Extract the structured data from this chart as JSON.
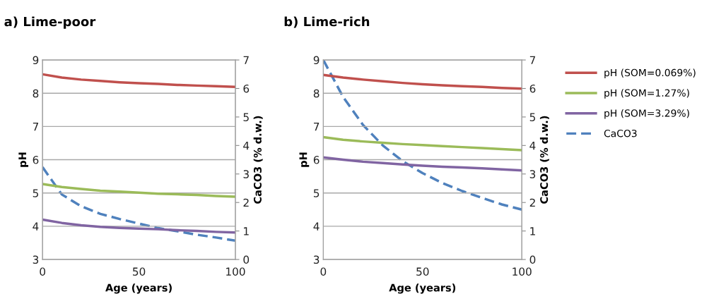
{
  "chart_data": [
    {
      "type": "line",
      "title": "a) Lime-poor",
      "xlabel": "Age (years)",
      "ylabel": "pH",
      "y2label": "CaCO3 (% d.w.)",
      "x": [
        0,
        10,
        20,
        30,
        40,
        50,
        60,
        70,
        80,
        90,
        100
      ],
      "xlim": [
        0,
        100
      ],
      "xticks": [
        0,
        50,
        100
      ],
      "ylim": [
        3,
        9
      ],
      "yticks": [
        3,
        4,
        5,
        6,
        7,
        8,
        9
      ],
      "y2lim": [
        0,
        7
      ],
      "y2ticks": [
        0,
        1,
        2,
        3,
        4,
        5,
        6,
        7
      ],
      "grid": "y",
      "legend": "right",
      "marker": "none",
      "series": [
        {
          "name": "pH (SOM=0.069%)",
          "color": "#c0504d",
          "line_style": "solid",
          "values": [
            8.57,
            8.47,
            8.41,
            8.37,
            8.33,
            8.3,
            8.28,
            8.25,
            8.23,
            8.21,
            8.19
          ]
        },
        {
          "name": "pH (SOM=1.27%)",
          "color": "#9bbb59",
          "line_style": "solid",
          "values": [
            5.27,
            5.18,
            5.12,
            5.07,
            5.04,
            5.01,
            4.98,
            4.96,
            4.94,
            4.91,
            4.89
          ]
        },
        {
          "name": "pH (SOM=3.29%)",
          "color": "#8064a2",
          "line_style": "solid",
          "values": [
            4.2,
            4.1,
            4.03,
            3.98,
            3.95,
            3.93,
            3.91,
            3.88,
            3.86,
            3.83,
            3.81
          ]
        },
        {
          "name": "CaCO3",
          "color": "#4f81bd",
          "line_style": "dashed",
          "axis": "y2",
          "values": [
            3.24,
            2.28,
            1.87,
            1.6,
            1.42,
            1.26,
            1.1,
            0.99,
            0.87,
            0.77,
            0.66
          ]
        }
      ]
    },
    {
      "type": "line",
      "title": "b) Lime-rich",
      "xlabel": "Age (years)",
      "ylabel": "pH",
      "y2label": "CaCO3 (% d.w.)",
      "x": [
        0,
        10,
        20,
        30,
        40,
        50,
        60,
        70,
        80,
        90,
        100
      ],
      "xlim": [
        0,
        100
      ],
      "xticks": [
        0,
        50,
        100
      ],
      "ylim": [
        3,
        9
      ],
      "yticks": [
        3,
        4,
        5,
        6,
        7,
        8,
        9
      ],
      "y2lim": [
        0,
        7
      ],
      "y2ticks": [
        0,
        1,
        2,
        3,
        4,
        5,
        6,
        7
      ],
      "grid": "y",
      "legend": "right",
      "marker": "none",
      "series": [
        {
          "name": "pH (SOM=0.069%)",
          "color": "#c0504d",
          "line_style": "solid",
          "values": [
            8.55,
            8.47,
            8.41,
            8.36,
            8.31,
            8.27,
            8.24,
            8.21,
            8.19,
            8.16,
            8.14
          ]
        },
        {
          "name": "pH (SOM=1.27%)",
          "color": "#9bbb59",
          "line_style": "solid",
          "values": [
            6.68,
            6.6,
            6.55,
            6.51,
            6.47,
            6.44,
            6.41,
            6.38,
            6.35,
            6.32,
            6.29
          ]
        },
        {
          "name": "pH (SOM=3.29%)",
          "color": "#8064a2",
          "line_style": "solid",
          "values": [
            6.07,
            6.0,
            5.94,
            5.9,
            5.86,
            5.82,
            5.79,
            5.77,
            5.74,
            5.71,
            5.68
          ]
        },
        {
          "name": "CaCO3",
          "color": "#4f81bd",
          "line_style": "dashed",
          "axis": "y2",
          "values": [
            7.0,
            5.7,
            4.72,
            4.0,
            3.45,
            3.03,
            2.68,
            2.4,
            2.16,
            1.93,
            1.75
          ]
        }
      ]
    }
  ]
}
